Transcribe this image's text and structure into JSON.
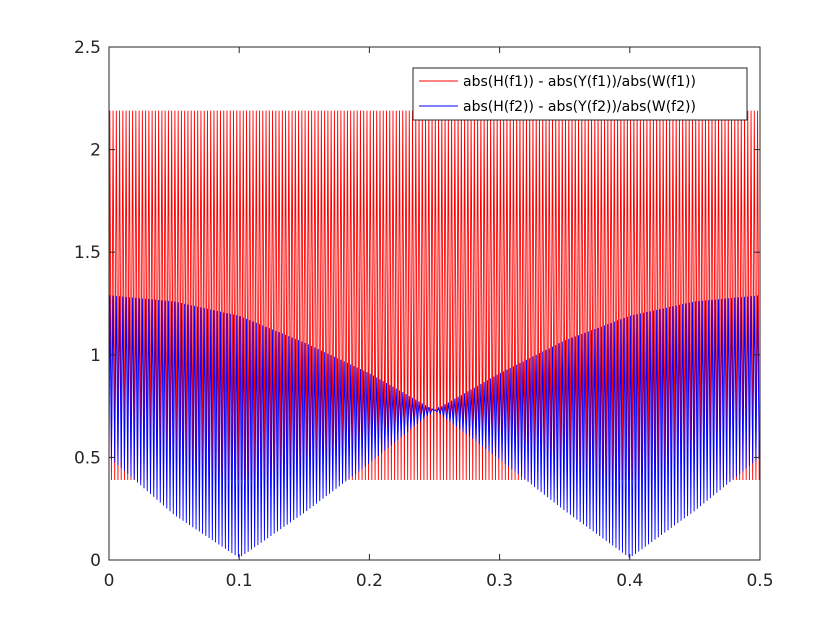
{
  "chart_data": {
    "type": "line",
    "title": "",
    "xlabel": "",
    "ylabel": "",
    "xlim": [
      0,
      0.5
    ],
    "ylim": [
      0,
      2.5
    ],
    "grid": false,
    "legend_position": "top-right",
    "x_ticks": [
      {
        "value": 0,
        "label": "0"
      },
      {
        "value": 0.1,
        "label": "0.1"
      },
      {
        "value": 0.2,
        "label": "0.2"
      },
      {
        "value": 0.3,
        "label": "0.3"
      },
      {
        "value": 0.4,
        "label": "0.4"
      },
      {
        "value": 0.5,
        "label": "0.5"
      }
    ],
    "y_ticks": [
      {
        "value": 0,
        "label": "0"
      },
      {
        "value": 0.5,
        "label": "0.5"
      },
      {
        "value": 1,
        "label": "1"
      },
      {
        "value": 1.5,
        "label": "1.5"
      },
      {
        "value": 2,
        "label": "2"
      },
      {
        "value": 2.5,
        "label": "2.5"
      }
    ],
    "series": [
      {
        "name": "abs(H(f1)) - abs(Y(f1))/abs(W(f1))",
        "color": "#ff0000",
        "oscillation_cycles": 200,
        "envelope_x": [
          0,
          0.5
        ],
        "envelope_upper": [
          2.19,
          2.19
        ],
        "envelope_lower": [
          0.39,
          0.39
        ],
        "start_value": 0.5,
        "end_value": 0.5
      },
      {
        "name": "abs(H(f2)) - abs(Y(f2))/abs(W(f2))",
        "color": "#0000ff",
        "oscillation_cycles": 200,
        "envelope_x": [
          0,
          0.05,
          0.1,
          0.15,
          0.2,
          0.25,
          0.3,
          0.35,
          0.4,
          0.45,
          0.5
        ],
        "envelope_upper": [
          1.29,
          1.26,
          1.19,
          1.06,
          0.91,
          0.73,
          0.91,
          1.07,
          1.19,
          1.26,
          1.29
        ],
        "envelope_lower": [
          0.5,
          0.22,
          0.01,
          0.23,
          0.47,
          0.73,
          0.49,
          0.24,
          0.01,
          0.24,
          0.5
        ],
        "start_value": 0.5,
        "end_value": 0.5
      }
    ]
  }
}
